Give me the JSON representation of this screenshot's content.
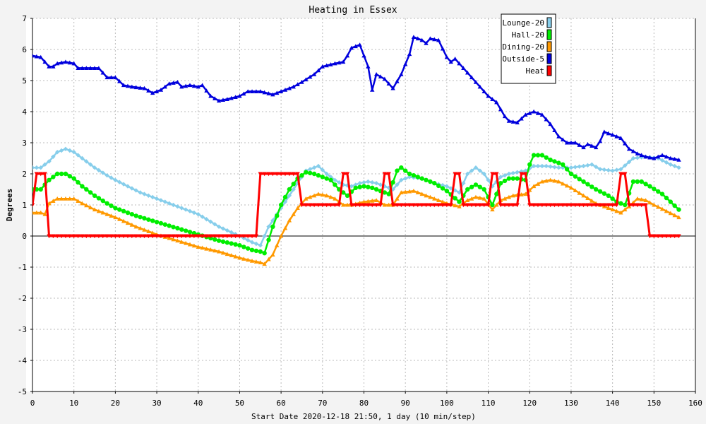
{
  "chart_data": {
    "type": "line",
    "title": "Heating in Essex",
    "xlabel": "Start Date 2020-12-18 21:50, 1 day (10 min/step)",
    "ylabel": "Degrees",
    "xlim": [
      0,
      160
    ],
    "ylim": [
      -5,
      7
    ],
    "x_ticks": [
      0,
      10,
      20,
      30,
      40,
      50,
      60,
      70,
      80,
      90,
      100,
      110,
      120,
      130,
      140,
      150,
      160
    ],
    "y_ticks": [
      -5,
      -4,
      -3,
      -2,
      -1,
      0,
      1,
      2,
      3,
      4,
      5,
      6,
      7
    ],
    "grid": true,
    "legend_position": "top-right",
    "series": [
      {
        "name": "Lounge-20",
        "color": "#87ceeb",
        "marker": "diamond",
        "points": [
          [
            0,
            2.2
          ],
          [
            2,
            2.2
          ],
          [
            4,
            2.4
          ],
          [
            6,
            2.7
          ],
          [
            8,
            2.8
          ],
          [
            10,
            2.7
          ],
          [
            12,
            2.5
          ],
          [
            15,
            2.2
          ],
          [
            18,
            1.95
          ],
          [
            20,
            1.8
          ],
          [
            23,
            1.6
          ],
          [
            26,
            1.4
          ],
          [
            30,
            1.2
          ],
          [
            33,
            1.05
          ],
          [
            36,
            0.9
          ],
          [
            40,
            0.7
          ],
          [
            45,
            0.3
          ],
          [
            50,
            0.0
          ],
          [
            53,
            -0.2
          ],
          [
            55,
            -0.3
          ],
          [
            57,
            0.3
          ],
          [
            60,
            0.9
          ],
          [
            63,
            1.5
          ],
          [
            66,
            2.1
          ],
          [
            68,
            2.2
          ],
          [
            69,
            2.25
          ],
          [
            71,
            2.0
          ],
          [
            73,
            1.8
          ],
          [
            75,
            1.65
          ],
          [
            77,
            1.6
          ],
          [
            79,
            1.7
          ],
          [
            81,
            1.75
          ],
          [
            83,
            1.7
          ],
          [
            85,
            1.6
          ],
          [
            87,
            1.5
          ],
          [
            89,
            1.8
          ],
          [
            91,
            1.9
          ],
          [
            94,
            1.85
          ],
          [
            97,
            1.7
          ],
          [
            100,
            1.6
          ],
          [
            103,
            1.4
          ],
          [
            105,
            2.0
          ],
          [
            107,
            2.2
          ],
          [
            109,
            2.0
          ],
          [
            111,
            1.6
          ],
          [
            113,
            1.9
          ],
          [
            115,
            2.0
          ],
          [
            117,
            2.05
          ],
          [
            119,
            2.1
          ],
          [
            121,
            2.25
          ],
          [
            124,
            2.25
          ],
          [
            127,
            2.2
          ],
          [
            130,
            2.2
          ],
          [
            133,
            2.25
          ],
          [
            135,
            2.3
          ],
          [
            137,
            2.15
          ],
          [
            140,
            2.1
          ],
          [
            142,
            2.15
          ],
          [
            145,
            2.5
          ],
          [
            148,
            2.55
          ],
          [
            151,
            2.5
          ],
          [
            154,
            2.3
          ],
          [
            156,
            2.2
          ]
        ]
      },
      {
        "name": "Hall-20",
        "color": "#00ee00",
        "marker": "circle",
        "points": [
          [
            0,
            1.5
          ],
          [
            2,
            1.5
          ],
          [
            4,
            1.8
          ],
          [
            6,
            2.0
          ],
          [
            8,
            2.0
          ],
          [
            10,
            1.85
          ],
          [
            12,
            1.6
          ],
          [
            15,
            1.3
          ],
          [
            18,
            1.05
          ],
          [
            20,
            0.9
          ],
          [
            25,
            0.65
          ],
          [
            30,
            0.45
          ],
          [
            35,
            0.25
          ],
          [
            40,
            0.05
          ],
          [
            45,
            -0.15
          ],
          [
            50,
            -0.3
          ],
          [
            53,
            -0.45
          ],
          [
            55,
            -0.5
          ],
          [
            56,
            -0.55
          ],
          [
            58,
            0.3
          ],
          [
            60,
            1.0
          ],
          [
            62,
            1.5
          ],
          [
            64,
            1.85
          ],
          [
            66,
            2.05
          ],
          [
            68,
            2.0
          ],
          [
            70,
            1.9
          ],
          [
            72,
            1.8
          ],
          [
            74,
            1.5
          ],
          [
            76,
            1.3
          ],
          [
            78,
            1.55
          ],
          [
            80,
            1.6
          ],
          [
            82,
            1.55
          ],
          [
            84,
            1.45
          ],
          [
            86,
            1.35
          ],
          [
            88,
            2.1
          ],
          [
            89,
            2.2
          ],
          [
            91,
            2.0
          ],
          [
            94,
            1.85
          ],
          [
            97,
            1.7
          ],
          [
            100,
            1.45
          ],
          [
            103,
            1.1
          ],
          [
            105,
            1.5
          ],
          [
            107,
            1.65
          ],
          [
            109,
            1.5
          ],
          [
            111,
            1.0
          ],
          [
            113,
            1.7
          ],
          [
            115,
            1.85
          ],
          [
            117,
            1.85
          ],
          [
            119,
            1.8
          ],
          [
            120,
            2.3
          ],
          [
            121,
            2.6
          ],
          [
            123,
            2.6
          ],
          [
            125,
            2.45
          ],
          [
            128,
            2.3
          ],
          [
            130,
            2.0
          ],
          [
            133,
            1.75
          ],
          [
            136,
            1.5
          ],
          [
            139,
            1.3
          ],
          [
            141,
            1.1
          ],
          [
            143,
            1.0
          ],
          [
            145,
            1.75
          ],
          [
            147,
            1.75
          ],
          [
            149,
            1.6
          ],
          [
            152,
            1.35
          ],
          [
            154,
            1.1
          ],
          [
            156,
            0.85
          ]
        ]
      },
      {
        "name": "Dining-20",
        "color": "#ff9900",
        "marker": "triangle",
        "points": [
          [
            0,
            0.75
          ],
          [
            2,
            0.75
          ],
          [
            3,
            0.7
          ],
          [
            4,
            1.05
          ],
          [
            6,
            1.2
          ],
          [
            10,
            1.2
          ],
          [
            12,
            1.05
          ],
          [
            15,
            0.85
          ],
          [
            20,
            0.6
          ],
          [
            25,
            0.3
          ],
          [
            30,
            0.05
          ],
          [
            35,
            -0.15
          ],
          [
            40,
            -0.35
          ],
          [
            45,
            -0.5
          ],
          [
            50,
            -0.7
          ],
          [
            53,
            -0.8
          ],
          [
            55,
            -0.85
          ],
          [
            56,
            -0.9
          ],
          [
            58,
            -0.6
          ],
          [
            60,
            0.0
          ],
          [
            62,
            0.5
          ],
          [
            64,
            0.9
          ],
          [
            66,
            1.2
          ],
          [
            69,
            1.35
          ],
          [
            71,
            1.3
          ],
          [
            73,
            1.2
          ],
          [
            75,
            1.0
          ],
          [
            77,
            1.0
          ],
          [
            80,
            1.1
          ],
          [
            83,
            1.15
          ],
          [
            85,
            1.0
          ],
          [
            87,
            1.0
          ],
          [
            89,
            1.4
          ],
          [
            92,
            1.45
          ],
          [
            95,
            1.3
          ],
          [
            98,
            1.15
          ],
          [
            100,
            1.05
          ],
          [
            103,
            0.95
          ],
          [
            105,
            1.15
          ],
          [
            107,
            1.25
          ],
          [
            109,
            1.2
          ],
          [
            111,
            0.85
          ],
          [
            113,
            1.15
          ],
          [
            116,
            1.3
          ],
          [
            119,
            1.35
          ],
          [
            121,
            1.6
          ],
          [
            123,
            1.75
          ],
          [
            125,
            1.8
          ],
          [
            127,
            1.75
          ],
          [
            130,
            1.55
          ],
          [
            133,
            1.3
          ],
          [
            136,
            1.05
          ],
          [
            139,
            0.9
          ],
          [
            142,
            0.75
          ],
          [
            144,
            0.95
          ],
          [
            146,
            1.2
          ],
          [
            148,
            1.15
          ],
          [
            150,
            1.0
          ],
          [
            153,
            0.8
          ],
          [
            156,
            0.6
          ]
        ]
      },
      {
        "name": "Outside-5",
        "color": "#0000dd",
        "marker": "triangle",
        "points": [
          [
            0,
            5.8
          ],
          [
            2,
            5.75
          ],
          [
            4,
            5.45
          ],
          [
            5,
            5.45
          ],
          [
            6,
            5.55
          ],
          [
            8,
            5.6
          ],
          [
            10,
            5.55
          ],
          [
            11,
            5.4
          ],
          [
            16,
            5.4
          ],
          [
            17,
            5.25
          ],
          [
            18,
            5.1
          ],
          [
            20,
            5.1
          ],
          [
            22,
            4.85
          ],
          [
            24,
            4.8
          ],
          [
            27,
            4.75
          ],
          [
            29,
            4.6
          ],
          [
            31,
            4.7
          ],
          [
            33,
            4.9
          ],
          [
            35,
            4.95
          ],
          [
            36,
            4.8
          ],
          [
            38,
            4.85
          ],
          [
            40,
            4.8
          ],
          [
            41,
            4.85
          ],
          [
            43,
            4.5
          ],
          [
            45,
            4.35
          ],
          [
            47,
            4.4
          ],
          [
            50,
            4.5
          ],
          [
            52,
            4.65
          ],
          [
            55,
            4.65
          ],
          [
            58,
            4.55
          ],
          [
            60,
            4.65
          ],
          [
            63,
            4.8
          ],
          [
            65,
            4.95
          ],
          [
            68,
            5.2
          ],
          [
            70,
            5.45
          ],
          [
            73,
            5.55
          ],
          [
            75,
            5.6
          ],
          [
            76,
            5.8
          ],
          [
            77,
            6.05
          ],
          [
            79,
            6.15
          ],
          [
            81,
            5.45
          ],
          [
            82,
            4.7
          ],
          [
            83,
            5.2
          ],
          [
            85,
            5.05
          ],
          [
            87,
            4.75
          ],
          [
            89,
            5.2
          ],
          [
            91,
            5.85
          ],
          [
            92,
            6.4
          ],
          [
            94,
            6.3
          ],
          [
            95,
            6.2
          ],
          [
            96,
            6.35
          ],
          [
            98,
            6.3
          ],
          [
            100,
            5.75
          ],
          [
            101,
            5.6
          ],
          [
            102,
            5.7
          ],
          [
            104,
            5.4
          ],
          [
            106,
            5.1
          ],
          [
            108,
            4.8
          ],
          [
            110,
            4.5
          ],
          [
            112,
            4.3
          ],
          [
            114,
            3.85
          ],
          [
            115,
            3.7
          ],
          [
            117,
            3.65
          ],
          [
            119,
            3.9
          ],
          [
            121,
            4.0
          ],
          [
            123,
            3.9
          ],
          [
            125,
            3.6
          ],
          [
            127,
            3.2
          ],
          [
            129,
            3.0
          ],
          [
            131,
            3.0
          ],
          [
            133,
            2.85
          ],
          [
            134,
            2.95
          ],
          [
            136,
            2.85
          ],
          [
            137,
            3.05
          ],
          [
            138,
            3.35
          ],
          [
            140,
            3.25
          ],
          [
            142,
            3.15
          ],
          [
            144,
            2.8
          ],
          [
            146,
            2.65
          ],
          [
            148,
            2.55
          ],
          [
            150,
            2.5
          ],
          [
            152,
            2.6
          ],
          [
            154,
            2.5
          ],
          [
            156,
            2.45
          ]
        ]
      },
      {
        "name": "Heat",
        "color": "#ff0000",
        "marker": "down-triangle",
        "points": [
          [
            0,
            1
          ],
          [
            1,
            2
          ],
          [
            3,
            2
          ],
          [
            4,
            0
          ],
          [
            54,
            0
          ],
          [
            55,
            2
          ],
          [
            64,
            2
          ],
          [
            65,
            1
          ],
          [
            74,
            1
          ],
          [
            75,
            2
          ],
          [
            76,
            2
          ],
          [
            77,
            1
          ],
          [
            84,
            1
          ],
          [
            85,
            2
          ],
          [
            86,
            2
          ],
          [
            87,
            1
          ],
          [
            101,
            1
          ],
          [
            102,
            2
          ],
          [
            103,
            2
          ],
          [
            104,
            1
          ],
          [
            110,
            1
          ],
          [
            111,
            2
          ],
          [
            112,
            2
          ],
          [
            113,
            1
          ],
          [
            117,
            1
          ],
          [
            118,
            2
          ],
          [
            119,
            2
          ],
          [
            120,
            1
          ],
          [
            141,
            1
          ],
          [
            142,
            2
          ],
          [
            143,
            2
          ],
          [
            144,
            1
          ],
          [
            148,
            1
          ],
          [
            149,
            0
          ],
          [
            156,
            0
          ]
        ]
      }
    ]
  }
}
